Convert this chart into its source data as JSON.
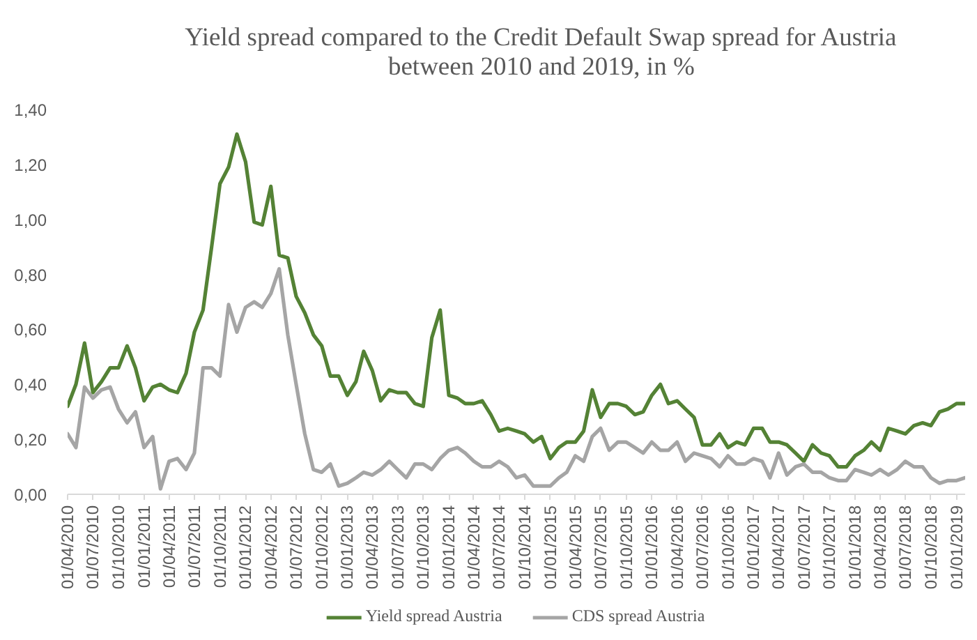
{
  "chart_data": {
    "type": "line",
    "title": "Yield spread compared to the Credit Default Swap spread for Austria\nbetween 2010 and 2019, in %",
    "x": [
      "2010-04",
      "2010-05",
      "2010-06",
      "2010-07",
      "2010-08",
      "2010-09",
      "2010-10",
      "2010-11",
      "2010-12",
      "2011-01",
      "2011-02",
      "2011-03",
      "2011-04",
      "2011-05",
      "2011-06",
      "2011-07",
      "2011-08",
      "2011-09",
      "2011-10",
      "2011-11",
      "2011-12",
      "2012-01",
      "2012-02",
      "2012-03",
      "2012-04",
      "2012-05",
      "2012-06",
      "2012-07",
      "2012-08",
      "2012-09",
      "2012-10",
      "2012-11",
      "2012-12",
      "2013-01",
      "2013-02",
      "2013-03",
      "2013-04",
      "2013-05",
      "2013-06",
      "2013-07",
      "2013-08",
      "2013-09",
      "2013-10",
      "2013-11",
      "2013-12",
      "2014-01",
      "2014-02",
      "2014-03",
      "2014-04",
      "2014-05",
      "2014-06",
      "2014-07",
      "2014-08",
      "2014-09",
      "2014-10",
      "2014-11",
      "2014-12",
      "2015-01",
      "2015-02",
      "2015-03",
      "2015-04",
      "2015-05",
      "2015-06",
      "2015-07",
      "2015-08",
      "2015-09",
      "2015-10",
      "2015-11",
      "2015-12",
      "2016-01",
      "2016-02",
      "2016-03",
      "2016-04",
      "2016-05",
      "2016-06",
      "2016-07",
      "2016-08",
      "2016-09",
      "2016-10",
      "2016-11",
      "2016-12",
      "2017-01",
      "2017-02",
      "2017-03",
      "2017-04",
      "2017-05",
      "2017-06",
      "2017-07",
      "2017-08",
      "2017-09",
      "2017-10",
      "2017-11",
      "2017-12",
      "2018-01",
      "2018-02",
      "2018-03",
      "2018-04",
      "2018-05",
      "2018-06",
      "2018-07",
      "2018-08",
      "2018-09",
      "2018-10",
      "2018-11",
      "2018-12",
      "2019-01",
      "2019-02"
    ],
    "series": [
      {
        "name": "Yield spread Austria",
        "color": "#548235",
        "values": [
          0.32,
          0.4,
          0.55,
          0.37,
          0.41,
          0.46,
          0.46,
          0.54,
          0.46,
          0.34,
          0.39,
          0.4,
          0.38,
          0.37,
          0.44,
          0.59,
          0.67,
          0.9,
          1.13,
          1.19,
          1.31,
          1.21,
          0.99,
          0.98,
          1.12,
          0.87,
          0.86,
          0.72,
          0.66,
          0.58,
          0.54,
          0.43,
          0.43,
          0.36,
          0.41,
          0.52,
          0.45,
          0.34,
          0.38,
          0.37,
          0.37,
          0.33,
          0.32,
          0.57,
          0.67,
          0.36,
          0.35,
          0.33,
          0.33,
          0.34,
          0.29,
          0.23,
          0.24,
          0.23,
          0.22,
          0.19,
          0.21,
          0.13,
          0.17,
          0.19,
          0.19,
          0.23,
          0.38,
          0.28,
          0.33,
          0.33,
          0.32,
          0.29,
          0.3,
          0.36,
          0.4,
          0.33,
          0.34,
          0.31,
          0.28,
          0.18,
          0.18,
          0.22,
          0.17,
          0.19,
          0.18,
          0.24,
          0.24,
          0.19,
          0.19,
          0.18,
          0.15,
          0.12,
          0.18,
          0.15,
          0.14,
          0.1,
          0.1,
          0.14,
          0.16,
          0.19,
          0.16,
          0.24,
          0.23,
          0.22,
          0.25,
          0.26,
          0.25,
          0.3,
          0.31,
          0.33,
          0.33
        ]
      },
      {
        "name": "CDS spread Austria",
        "color": "#a5a5a5",
        "values": [
          0.22,
          0.17,
          0.39,
          0.35,
          0.38,
          0.39,
          0.31,
          0.26,
          0.3,
          0.17,
          0.21,
          0.02,
          0.12,
          0.13,
          0.09,
          0.15,
          0.46,
          0.46,
          0.43,
          0.69,
          0.59,
          0.68,
          0.7,
          0.68,
          0.73,
          0.82,
          0.58,
          0.4,
          0.22,
          0.09,
          0.08,
          0.11,
          0.03,
          0.04,
          0.06,
          0.08,
          0.07,
          0.09,
          0.12,
          0.09,
          0.06,
          0.11,
          0.11,
          0.09,
          0.13,
          0.16,
          0.17,
          0.15,
          0.12,
          0.1,
          0.1,
          0.12,
          0.1,
          0.06,
          0.07,
          0.03,
          0.03,
          0.03,
          0.06,
          0.08,
          0.14,
          0.12,
          0.21,
          0.24,
          0.16,
          0.19,
          0.19,
          0.17,
          0.15,
          0.19,
          0.16,
          0.16,
          0.19,
          0.12,
          0.15,
          0.14,
          0.13,
          0.1,
          0.14,
          0.11,
          0.11,
          0.13,
          0.12,
          0.06,
          0.15,
          0.07,
          0.1,
          0.11,
          0.08,
          0.08,
          0.06,
          0.05,
          0.05,
          0.09,
          0.08,
          0.07,
          0.09,
          0.07,
          0.09,
          0.12,
          0.1,
          0.1,
          0.06,
          0.04,
          0.05,
          0.05,
          0.06
        ]
      }
    ],
    "xlim": [
      "2010-04",
      "2019-02"
    ],
    "xticks": [
      {
        "value": "2010-04",
        "label": "01/04/2010"
      },
      {
        "value": "2010-07",
        "label": "01/07/2010"
      },
      {
        "value": "2010-10",
        "label": "01/10/2010"
      },
      {
        "value": "2011-01",
        "label": "01/01/2011"
      },
      {
        "value": "2011-04",
        "label": "01/04/2011"
      },
      {
        "value": "2011-07",
        "label": "01/07/2011"
      },
      {
        "value": "2011-10",
        "label": "01/10/2011"
      },
      {
        "value": "2012-01",
        "label": "01/01/2012"
      },
      {
        "value": "2012-04",
        "label": "01/04/2012"
      },
      {
        "value": "2012-07",
        "label": "01/07/2012"
      },
      {
        "value": "2012-10",
        "label": "01/10/2012"
      },
      {
        "value": "2013-01",
        "label": "01/01/2013"
      },
      {
        "value": "2013-04",
        "label": "01/04/2013"
      },
      {
        "value": "2013-07",
        "label": "01/07/2013"
      },
      {
        "value": "2013-10",
        "label": "01/10/2013"
      },
      {
        "value": "2014-01",
        "label": "01/01/2014"
      },
      {
        "value": "2014-04",
        "label": "01/04/2014"
      },
      {
        "value": "2014-07",
        "label": "01/07/2014"
      },
      {
        "value": "2014-10",
        "label": "01/10/2014"
      },
      {
        "value": "2015-01",
        "label": "01/01/2015"
      },
      {
        "value": "2015-04",
        "label": "01/04/2015"
      },
      {
        "value": "2015-07",
        "label": "01/07/2015"
      },
      {
        "value": "2015-10",
        "label": "01/10/2015"
      },
      {
        "value": "2016-01",
        "label": "01/01/2016"
      },
      {
        "value": "2016-04",
        "label": "01/04/2016"
      },
      {
        "value": "2016-07",
        "label": "01/07/2016"
      },
      {
        "value": "2016-10",
        "label": "01/10/2016"
      },
      {
        "value": "2017-01",
        "label": "01/01/2017"
      },
      {
        "value": "2017-04",
        "label": "01/04/2017"
      },
      {
        "value": "2017-07",
        "label": "01/07/2017"
      },
      {
        "value": "2017-10",
        "label": "01/10/2017"
      },
      {
        "value": "2018-01",
        "label": "01/01/2018"
      },
      {
        "value": "2018-04",
        "label": "01/04/2018"
      },
      {
        "value": "2018-07",
        "label": "01/07/2018"
      },
      {
        "value": "2018-10",
        "label": "01/10/2018"
      },
      {
        "value": "2019-01",
        "label": "01/01/2019"
      }
    ],
    "ylim": [
      0,
      1.4
    ],
    "yticks": [
      {
        "value": 0,
        "label": "0,00"
      },
      {
        "value": 0.2,
        "label": "0,20"
      },
      {
        "value": 0.4,
        "label": "0,40"
      },
      {
        "value": 0.6,
        "label": "0,60"
      },
      {
        "value": 0.8,
        "label": "0,80"
      },
      {
        "value": 1.0,
        "label": "1,00"
      },
      {
        "value": 1.2,
        "label": "1,20"
      },
      {
        "value": 1.4,
        "label": "1,40"
      }
    ],
    "legend": "bottom",
    "line_style": "solid"
  }
}
